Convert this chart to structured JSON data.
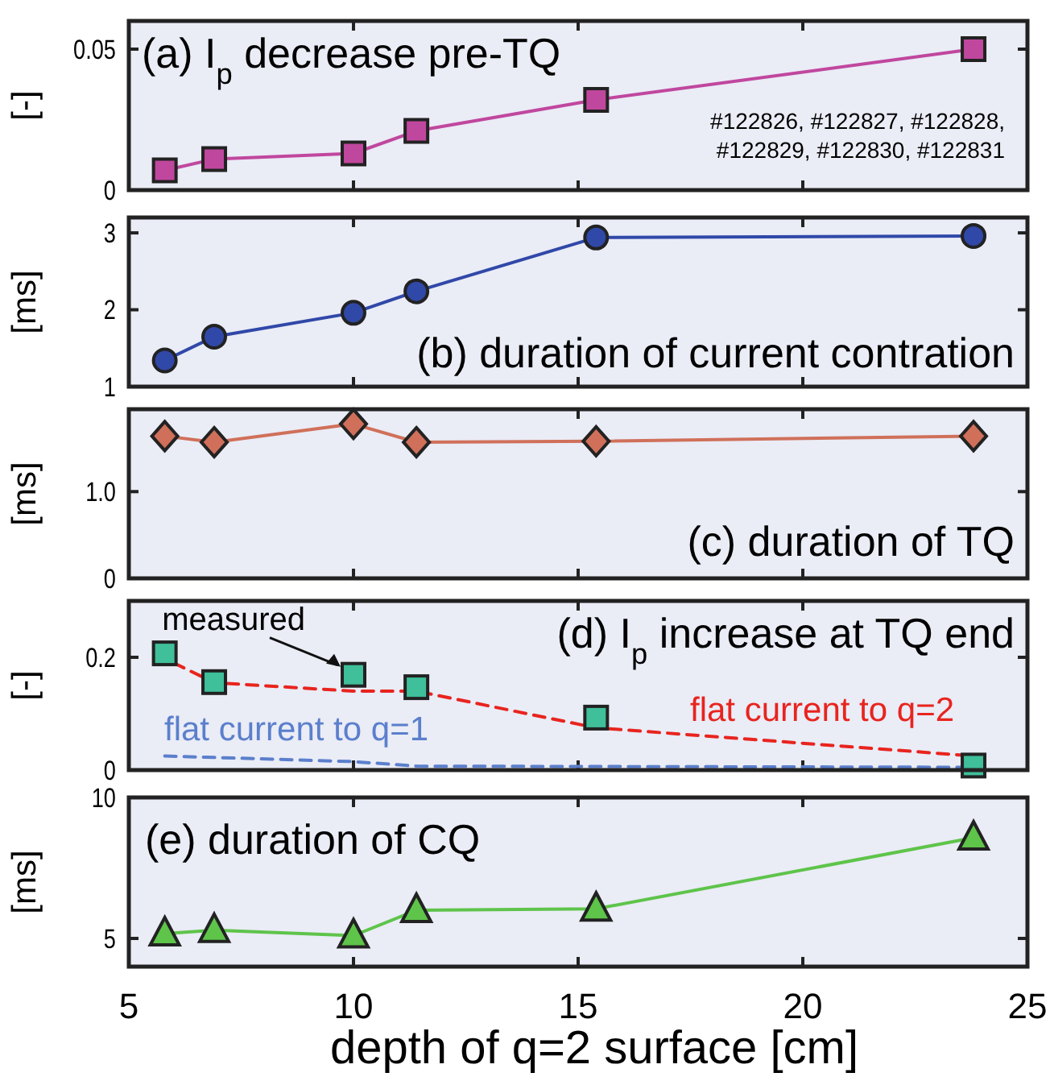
{
  "chart_data": [
    {
      "type": "line",
      "title": "(a) I$_{p}$ decrease pre-TQ",
      "ylabel": "[-]",
      "x": [
        5.8,
        6.9,
        10.0,
        11.4,
        15.4,
        23.8
      ],
      "xlim": [
        5,
        25
      ],
      "xticks": [
        5,
        10,
        15,
        20,
        25
      ],
      "ylim": [
        0,
        0.06
      ],
      "yticks": [
        0,
        0.05
      ],
      "tick_labels": "y",
      "marker": "square",
      "grid": false,
      "series": [
        {
          "color": "#c0479e",
          "values": [
            0.007,
            0.011,
            0.013,
            0.021,
            0.032,
            0.05
          ]
        }
      ],
      "annotations": [
        "#122826, #122827, #122828,",
        "#122829, #122830, #122831"
      ]
    },
    {
      "type": "line",
      "title": "(b) duration of current contration",
      "ylabel": "[ms]",
      "x": [
        5.8,
        6.9,
        10.0,
        11.4,
        15.4,
        23.8
      ],
      "xlim": [
        5,
        25
      ],
      "xticks": [
        5,
        10,
        15,
        20,
        25
      ],
      "ylim": [
        1,
        3.2
      ],
      "yticks": [
        1,
        2,
        3
      ],
      "tick_labels": "y",
      "marker": "circle",
      "grid": false,
      "series": [
        {
          "color": "#3048a8",
          "values": [
            1.34,
            1.65,
            1.96,
            2.24,
            2.94,
            2.96
          ]
        }
      ]
    },
    {
      "type": "line",
      "title": "(c) duration of TQ",
      "ylabel": "[ms]",
      "x": [
        5.8,
        6.9,
        10.0,
        11.4,
        15.4,
        23.8
      ],
      "xlim": [
        5,
        25
      ],
      "xticks": [
        5,
        10,
        15,
        20,
        25
      ],
      "ylim": [
        0,
        1.95
      ],
      "yticks": [
        0,
        {
          "value": 1,
          "label": "1.0"
        }
      ],
      "tick_labels": "y",
      "marker": "diamond",
      "grid": false,
      "series": [
        {
          "color": "#d0705a",
          "values": [
            1.64,
            1.57,
            1.78,
            1.57,
            1.58,
            1.64
          ]
        }
      ]
    },
    {
      "type": "line",
      "title": "(d) I$_{p}$ increase at TQ end",
      "ylabel": "[-]",
      "xlim": [
        5,
        25
      ],
      "xticks": [
        5,
        10,
        15,
        20,
        25
      ],
      "ylim": [
        0,
        0.3
      ],
      "yticks": [
        0,
        {
          "value": 0.2,
          "label": "0.2"
        }
      ],
      "tick_labels": "y",
      "grid": false,
      "series": [
        {
          "name": "flat current to q=2",
          "color": "#e8241e",
          "line_style": "dashed",
          "marker": "none",
          "x": [
            6.0,
            6.9,
            10.0,
            11.4,
            15.4,
            23.8
          ],
          "values": [
            0.19,
            0.155,
            0.14,
            0.14,
            0.075,
            0.025
          ]
        },
        {
          "name": "flat current to q=1",
          "color": "#5b7fcc",
          "line_style": "dashed",
          "marker": "none",
          "x": [
            5.8,
            10.0,
            11.4,
            23.8
          ],
          "values": [
            0.025,
            0.015,
            0.007,
            0.005
          ]
        },
        {
          "type": "scatter",
          "color": "#3fbf9a",
          "marker": "square",
          "x": [
            5.8,
            6.9,
            10.0,
            11.4,
            15.4,
            23.8
          ],
          "values": [
            0.207,
            0.156,
            0.169,
            0.147,
            0.093,
            0.008
          ]
        }
      ],
      "annotations": [
        {
          "text": "measured",
          "x": 10,
          "y": 0.169
        }
      ]
    },
    {
      "type": "line",
      "title": "(e) duration of CQ",
      "ylabel": "[ms]",
      "xlabel": "depth of q=2 surface [cm]",
      "x": [
        5.8,
        6.9,
        10.0,
        11.4,
        15.4,
        23.8
      ],
      "xlim": [
        5,
        25
      ],
      "xticks": [
        5,
        10,
        15,
        20,
        25
      ],
      "ylim": [
        4,
        10
      ],
      "yticks": [
        5,
        10
      ],
      "marker": "triangle",
      "grid": false,
      "series": [
        {
          "color": "#5ec44a",
          "values": [
            5.17,
            5.29,
            5.1,
            6.0,
            6.05,
            8.57
          ]
        }
      ]
    }
  ]
}
